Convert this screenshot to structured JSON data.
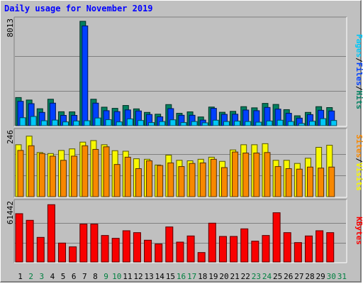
{
  "title": "Daily usage for November 2019",
  "chart_data": [
    {
      "type": "bar",
      "panel": "hits-files-pages",
      "max_label": "8013",
      "ylim": [
        0,
        8013
      ],
      "legend": [
        {
          "name": "Pages",
          "color": "#00c8f8"
        },
        {
          "name": "Files",
          "color": "#0040ff"
        },
        {
          "name": "Hits",
          "color": "#008060"
        }
      ],
      "legend_separator": "/",
      "categories": [
        "1",
        "2",
        "3",
        "4",
        "5",
        "6",
        "7",
        "8",
        "9",
        "10",
        "11",
        "12",
        "13",
        "14",
        "15",
        "16",
        "17",
        "18",
        "19",
        "20",
        "21",
        "22",
        "23",
        "24",
        "25",
        "26",
        "27",
        "28",
        "29",
        "30",
        "31"
      ],
      "series": [
        {
          "name": "Hits",
          "color": "#008060",
          "values": [
            2160,
            1970,
            1300,
            2030,
            1070,
            1060,
            8013,
            2030,
            1420,
            1330,
            1550,
            1290,
            1020,
            880,
            1620,
            950,
            1060,
            670,
            1430,
            1030,
            1100,
            1460,
            1370,
            1710,
            1630,
            1230,
            760,
            1020,
            1460,
            1390,
            0
          ]
        },
        {
          "name": "Files",
          "color": "#0040ff",
          "values": [
            1870,
            1690,
            1020,
            1730,
            790,
            790,
            7660,
            1730,
            1150,
            1080,
            1210,
            1130,
            860,
            680,
            1310,
            800,
            800,
            430,
            1330,
            870,
            880,
            1200,
            1150,
            1400,
            1270,
            950,
            580,
            850,
            1180,
            1130,
            0
          ]
        },
        {
          "name": "Pages",
          "color": "#00c8f8",
          "values": [
            610,
            710,
            380,
            430,
            290,
            360,
            380,
            590,
            460,
            290,
            520,
            400,
            240,
            320,
            450,
            240,
            320,
            220,
            420,
            320,
            350,
            320,
            270,
            360,
            420,
            320,
            170,
            340,
            540,
            400,
            0
          ]
        }
      ]
    },
    {
      "type": "bar",
      "panel": "visits-sites",
      "max_label": "246",
      "ylim": [
        0,
        246
      ],
      "legend": [
        {
          "name": "Sites",
          "color": "#f88800"
        },
        {
          "name": "Visits",
          "color": "#f8f800"
        }
      ],
      "legend_separator": "/",
      "categories": [
        "1",
        "2",
        "3",
        "4",
        "5",
        "6",
        "7",
        "8",
        "9",
        "10",
        "11",
        "12",
        "13",
        "14",
        "15",
        "16",
        "17",
        "18",
        "19",
        "20",
        "21",
        "22",
        "23",
        "24",
        "25",
        "26",
        "27",
        "28",
        "29",
        "30",
        "31"
      ],
      "series": [
        {
          "name": "Visits",
          "color": "#f8f800",
          "values": [
            200,
            233,
            170,
            166,
            178,
            184,
            210,
            216,
            200,
            177,
            175,
            146,
            144,
            122,
            160,
            140,
            138,
            144,
            152,
            136,
            180,
            200,
            200,
            204,
            140,
            140,
            128,
            148,
            190,
            198,
            0
          ]
        },
        {
          "name": "Sites",
          "color": "#f88800",
          "values": [
            178,
            196,
            166,
            156,
            140,
            156,
            196,
            182,
            192,
            124,
            152,
            108,
            138,
            120,
            130,
            116,
            128,
            130,
            144,
            112,
            172,
            168,
            168,
            170,
            116,
            108,
            106,
            114,
            110,
            114,
            0
          ]
        }
      ]
    },
    {
      "type": "bar",
      "panel": "kbytes",
      "max_label": "61442",
      "ylim": [
        0,
        61442
      ],
      "legend": [
        {
          "name": "KBytes",
          "color": "#f80000"
        }
      ],
      "categories": [
        "1",
        "2",
        "3",
        "4",
        "5",
        "6",
        "7",
        "8",
        "9",
        "10",
        "11",
        "12",
        "13",
        "14",
        "15",
        "16",
        "17",
        "18",
        "19",
        "20",
        "21",
        "22",
        "23",
        "24",
        "25",
        "26",
        "27",
        "28",
        "29",
        "30",
        "31"
      ],
      "series": [
        {
          "name": "KBytes",
          "color": "#f80000",
          "values": [
            51000,
            44000,
            26000,
            60500,
            20000,
            16000,
            40000,
            40000,
            28000,
            25000,
            33000,
            31000,
            23000,
            19000,
            37000,
            21000,
            27500,
            10000,
            41000,
            27000,
            27000,
            35000,
            22000,
            28000,
            52000,
            31000,
            20500,
            27500,
            33000,
            31000,
            0
          ]
        }
      ]
    }
  ],
  "x_labels": {
    "weekday_color": "#000000",
    "weekend_color": "#008040",
    "weekend_days": [
      "2",
      "3",
      "9",
      "10",
      "16",
      "17",
      "23",
      "24",
      "30",
      "31"
    ]
  }
}
